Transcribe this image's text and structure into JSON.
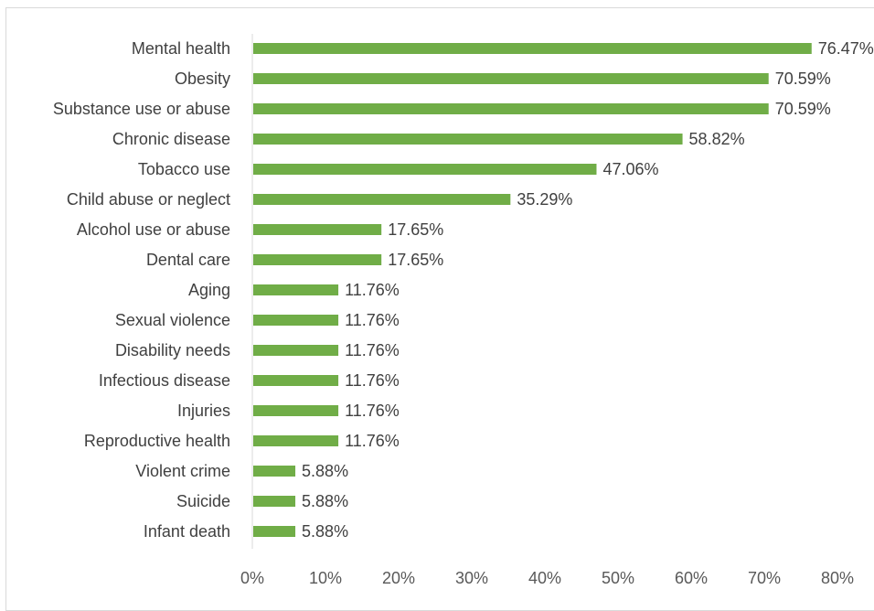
{
  "chart_data": {
    "type": "bar",
    "orientation": "horizontal",
    "categories": [
      "Mental health",
      "Obesity",
      "Substance use or abuse",
      "Chronic disease",
      "Tobacco use",
      "Child abuse or neglect",
      "Alcohol use or abuse",
      "Dental care",
      "Aging",
      "Sexual violence",
      "Disability needs",
      "Infectious disease",
      "Injuries",
      "Reproductive health",
      "Violent crime",
      "Suicide",
      "Infant death"
    ],
    "values": [
      76.47,
      70.59,
      70.59,
      58.82,
      47.06,
      35.29,
      17.65,
      17.65,
      11.76,
      11.76,
      11.76,
      11.76,
      11.76,
      11.76,
      5.88,
      5.88,
      5.88
    ],
    "data_labels": [
      "76.47%",
      "70.59%",
      "70.59%",
      "58.82%",
      "47.06%",
      "35.29%",
      "17.65%",
      "17.65%",
      "11.76%",
      "11.76%",
      "11.76%",
      "11.76%",
      "11.76%",
      "11.76%",
      "5.88%",
      "5.88%",
      "5.88%"
    ],
    "xlim": [
      0,
      80
    ],
    "xticks": [
      "0%",
      "10%",
      "20%",
      "30%",
      "40%",
      "50%",
      "60%",
      "70%",
      "80%"
    ],
    "title": "",
    "xlabel": "",
    "ylabel": "",
    "grid": false,
    "legend": "none",
    "bar_color": "#70ad47"
  }
}
